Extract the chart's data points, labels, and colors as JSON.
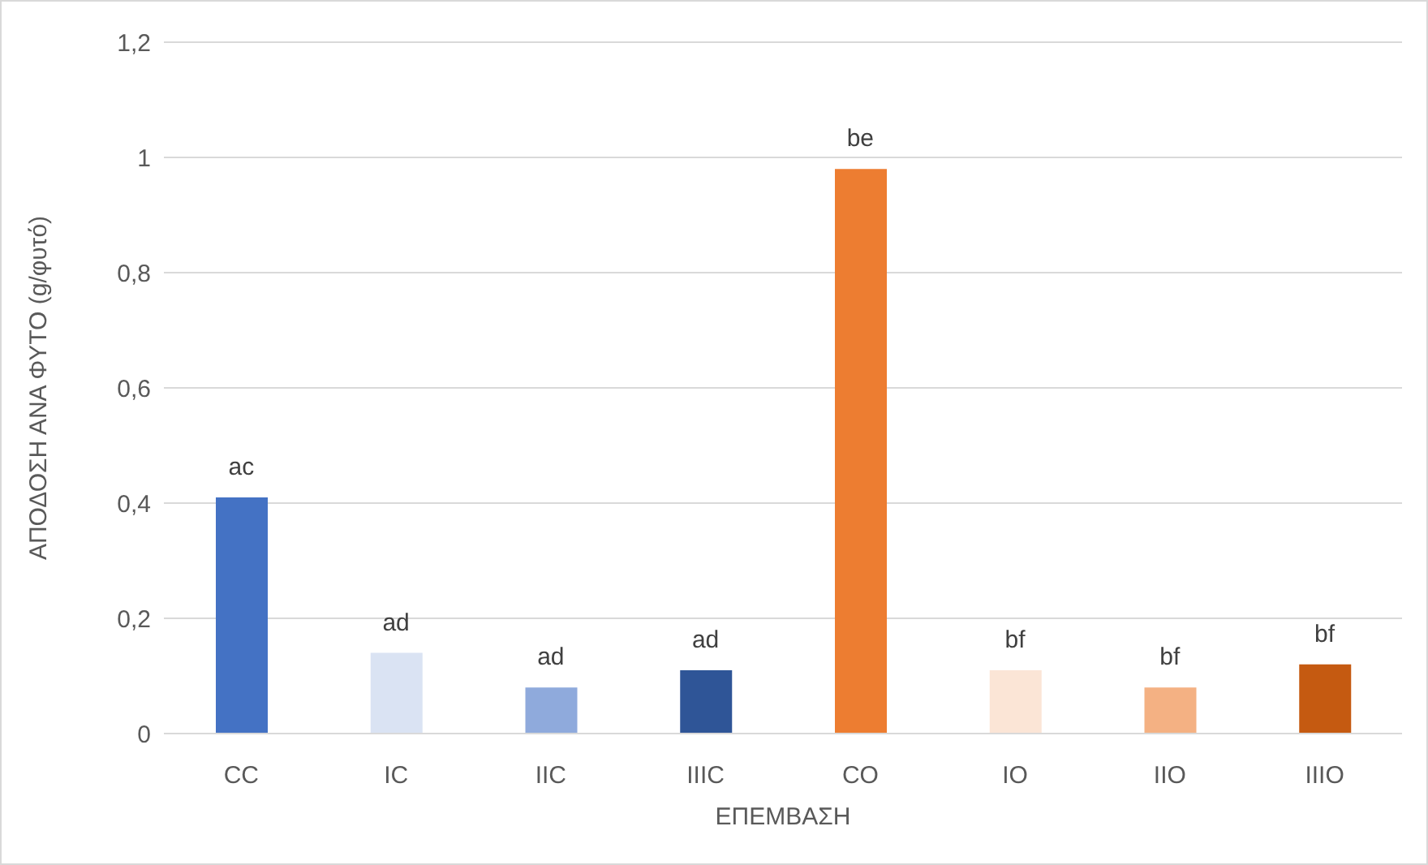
{
  "chart_data": {
    "type": "bar",
    "xlabel": "ΕΠΕΜΒΑΣΗ",
    "ylabel": "ΑΠΟΔΟΣΗ ΑΝΑ ΦΥΤΟ (g/φυτό)",
    "categories": [
      "CC",
      "IC",
      "IIC",
      "IIIC",
      "CO",
      "IO",
      "IIO",
      "IIIO"
    ],
    "values": [
      0.41,
      0.14,
      0.08,
      0.11,
      0.98,
      0.11,
      0.08,
      0.12
    ],
    "colors": [
      "#4472c4",
      "#dae3f3",
      "#8faadc",
      "#2f5597",
      "#ed7d31",
      "#fbe5d6",
      "#f4b183",
      "#c55a11"
    ],
    "ylim": [
      0,
      1.2
    ],
    "yticks": [
      0,
      {
        "value": 0.2,
        "label": "0,2"
      },
      {
        "value": 0.4,
        "label": "0,4"
      },
      {
        "value": 0.6,
        "label": "0,6"
      },
      {
        "value": 0.8,
        "label": "0,8"
      },
      1,
      {
        "value": 1.2,
        "label": "1,2"
      }
    ],
    "grid": "y",
    "annotations": [
      {
        "text": "ac",
        "x": "CC",
        "y": 0.41
      },
      {
        "text": "ad",
        "x": "IC",
        "y": 0.14
      },
      {
        "text": "ad",
        "x": "IIC",
        "y": 0.08
      },
      {
        "text": "ad",
        "x": "IIIC",
        "y": 0.11
      },
      {
        "text": "be",
        "x": "CO",
        "y": 0.98
      },
      {
        "text": "bf",
        "x": "IO",
        "y": 0.11
      },
      {
        "text": "bf",
        "x": "IIO",
        "y": 0.08
      },
      {
        "text": "bf",
        "x": "IIIO",
        "y": 0.12
      }
    ]
  }
}
